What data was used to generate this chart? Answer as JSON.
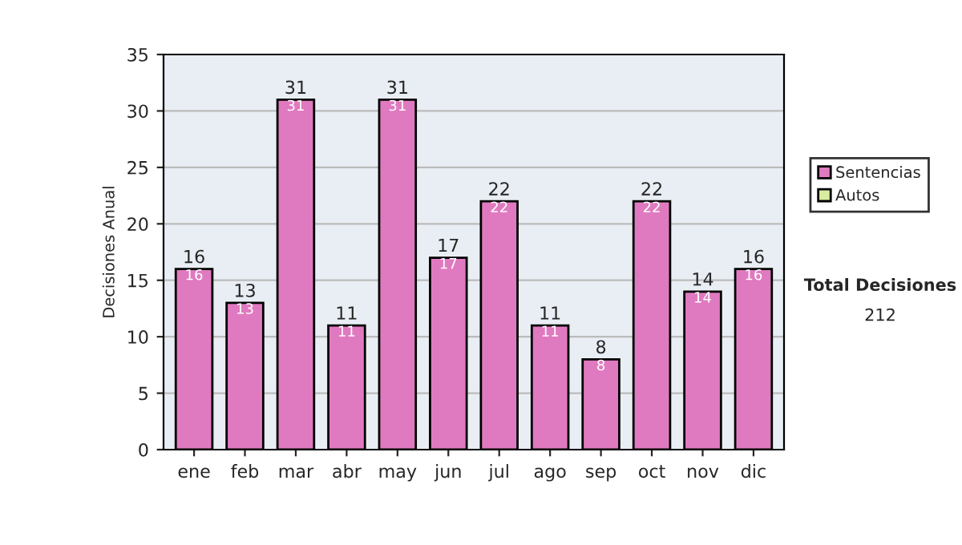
{
  "chart_data": {
    "type": "bar",
    "stacked": true,
    "ylabel": "Decisiones Anual",
    "categories": [
      "ene",
      "feb",
      "mar",
      "abr",
      "may",
      "jun",
      "jul",
      "ago",
      "sep",
      "oct",
      "nov",
      "dic"
    ],
    "series": [
      {
        "name": "Sentencias",
        "color": "#e07ac0",
        "values": [
          16,
          13,
          31,
          11,
          31,
          17,
          22,
          11,
          8,
          22,
          14,
          16
        ],
        "value_labels": [
          "16",
          "13",
          "31",
          "11",
          "31",
          "17",
          "22",
          "11",
          "8",
          "22",
          "14",
          "16"
        ]
      },
      {
        "name": "Autos",
        "color": "#d8eca0",
        "values": [
          null,
          null,
          null,
          null,
          null,
          null,
          null,
          null,
          null,
          null,
          null,
          null
        ]
      }
    ],
    "totals": [
      "16",
      "13",
      "31",
      "11",
      "31",
      "17",
      "22",
      "11",
      "8",
      "22",
      "14",
      "16"
    ],
    "ylim": [
      0,
      35
    ],
    "yticks": [
      0,
      5,
      10,
      15,
      20,
      25,
      30,
      35
    ],
    "grid": "y",
    "legend": "right",
    "annotations": [
      "Total Decisiones",
      "212"
    ]
  }
}
